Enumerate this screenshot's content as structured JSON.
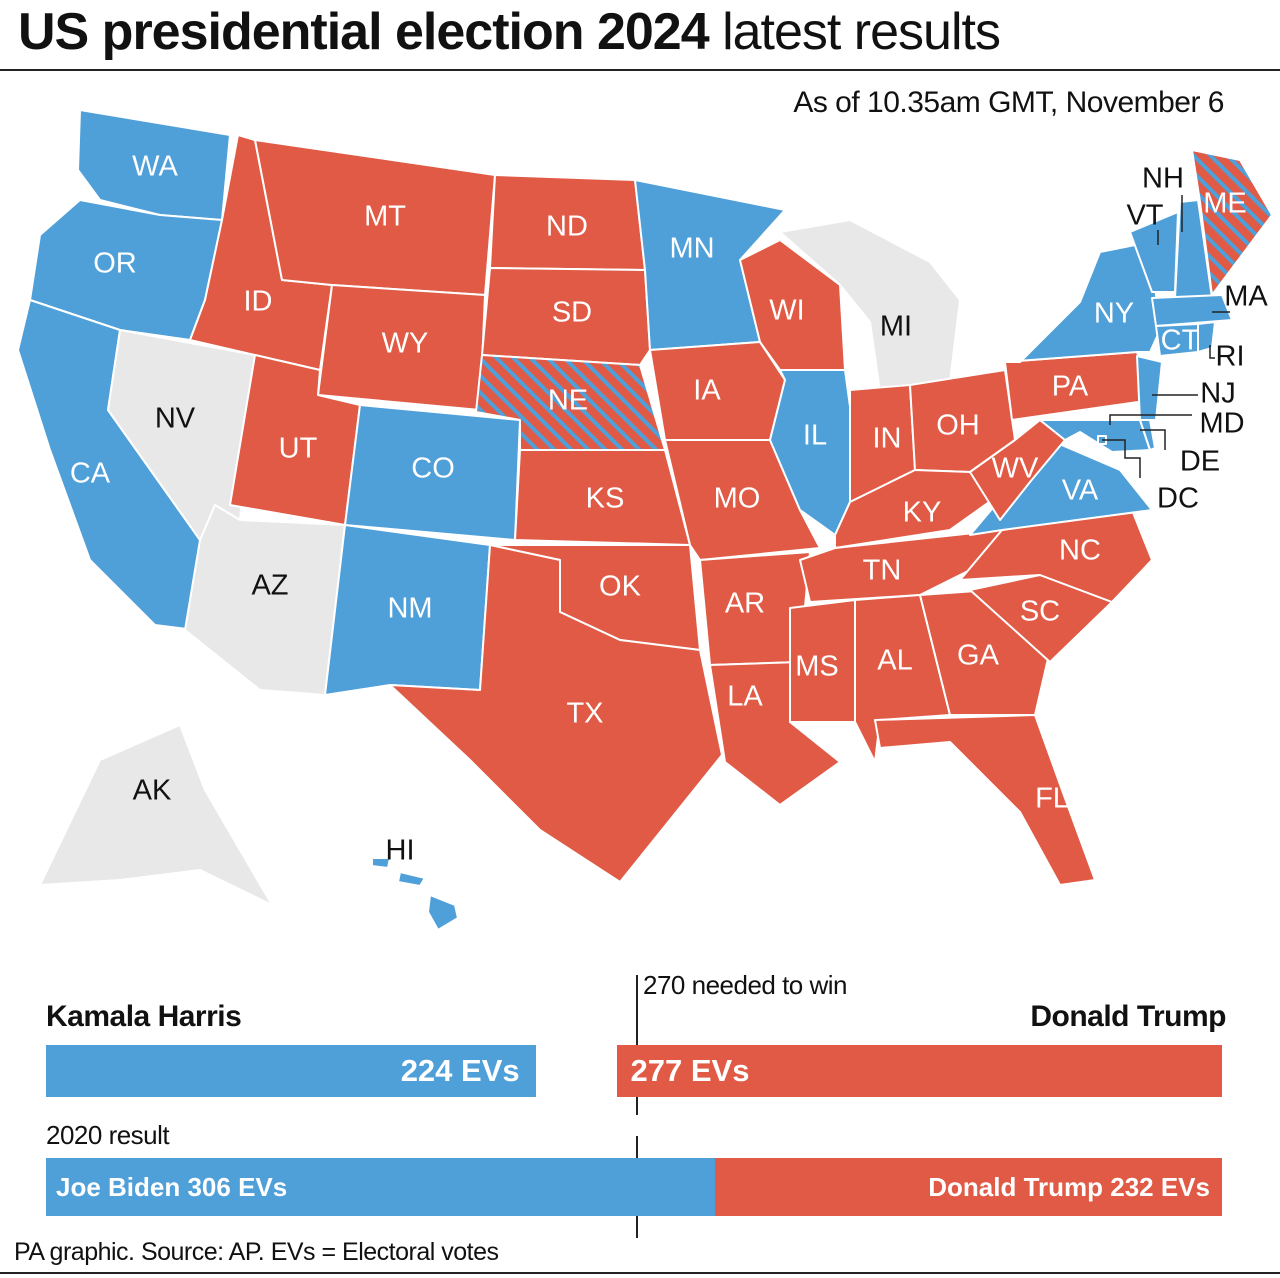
{
  "title_bold": "US presidential election 2024",
  "title_rest": " latest results",
  "as_of": "As of 10.35am GMT, November 6",
  "colors": {
    "dem": "#4f9fd9",
    "rep": "#e05a45",
    "undecided": "#e8e8e8"
  },
  "states": [
    {
      "abbr": "WA",
      "winner": "dem"
    },
    {
      "abbr": "OR",
      "winner": "dem"
    },
    {
      "abbr": "CA",
      "winner": "dem"
    },
    {
      "abbr": "NV",
      "winner": "undecided"
    },
    {
      "abbr": "ID",
      "winner": "rep"
    },
    {
      "abbr": "MT",
      "winner": "rep"
    },
    {
      "abbr": "WY",
      "winner": "rep"
    },
    {
      "abbr": "UT",
      "winner": "rep"
    },
    {
      "abbr": "CO",
      "winner": "dem"
    },
    {
      "abbr": "AZ",
      "winner": "undecided"
    },
    {
      "abbr": "NM",
      "winner": "dem"
    },
    {
      "abbr": "ND",
      "winner": "rep"
    },
    {
      "abbr": "SD",
      "winner": "rep"
    },
    {
      "abbr": "NE",
      "winner": "split"
    },
    {
      "abbr": "KS",
      "winner": "rep"
    },
    {
      "abbr": "OK",
      "winner": "rep"
    },
    {
      "abbr": "TX",
      "winner": "rep"
    },
    {
      "abbr": "MN",
      "winner": "dem"
    },
    {
      "abbr": "IA",
      "winner": "rep"
    },
    {
      "abbr": "MO",
      "winner": "rep"
    },
    {
      "abbr": "AR",
      "winner": "rep"
    },
    {
      "abbr": "LA",
      "winner": "rep"
    },
    {
      "abbr": "WI",
      "winner": "rep"
    },
    {
      "abbr": "IL",
      "winner": "dem"
    },
    {
      "abbr": "MI",
      "winner": "undecided"
    },
    {
      "abbr": "IN",
      "winner": "rep"
    },
    {
      "abbr": "OH",
      "winner": "rep"
    },
    {
      "abbr": "KY",
      "winner": "rep"
    },
    {
      "abbr": "TN",
      "winner": "rep"
    },
    {
      "abbr": "MS",
      "winner": "rep"
    },
    {
      "abbr": "AL",
      "winner": "rep"
    },
    {
      "abbr": "GA",
      "winner": "rep"
    },
    {
      "abbr": "FL",
      "winner": "rep"
    },
    {
      "abbr": "SC",
      "winner": "rep"
    },
    {
      "abbr": "NC",
      "winner": "rep"
    },
    {
      "abbr": "VA",
      "winner": "dem"
    },
    {
      "abbr": "WV",
      "winner": "rep"
    },
    {
      "abbr": "PA",
      "winner": "rep"
    },
    {
      "abbr": "NY",
      "winner": "dem"
    },
    {
      "abbr": "NJ",
      "winner": "dem"
    },
    {
      "abbr": "MD",
      "winner": "dem"
    },
    {
      "abbr": "DE",
      "winner": "dem"
    },
    {
      "abbr": "DC",
      "winner": "dem"
    },
    {
      "abbr": "VT",
      "winner": "dem"
    },
    {
      "abbr": "NH",
      "winner": "dem"
    },
    {
      "abbr": "ME",
      "winner": "split"
    },
    {
      "abbr": "MA",
      "winner": "dem"
    },
    {
      "abbr": "CT",
      "winner": "dem"
    },
    {
      "abbr": "RI",
      "winner": "dem"
    },
    {
      "abbr": "AK",
      "winner": "undecided"
    },
    {
      "abbr": "HI",
      "winner": "dem"
    }
  ],
  "results_2024": {
    "harris_name": "Kamala Harris",
    "harris_evs": 224,
    "harris_label": "224 EVs",
    "trump_name": "Donald Trump",
    "trump_evs": 277,
    "trump_label": "277 EVs",
    "total_evs": 538,
    "needed": 270,
    "needed_label": "270 needed to win"
  },
  "results_2020": {
    "heading": "2020 result",
    "biden_evs": 306,
    "biden_label": "Joe Biden 306 EVs",
    "trump_evs": 232,
    "trump_label": "Donald Trump 232 EVs"
  },
  "source": "PA graphic. Source: AP. EVs = Electoral votes"
}
